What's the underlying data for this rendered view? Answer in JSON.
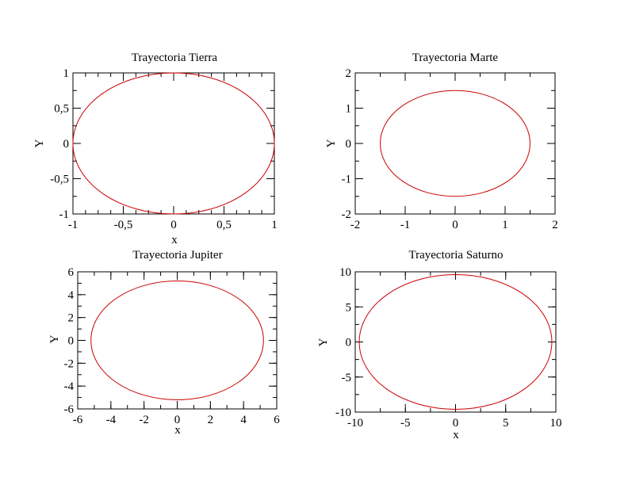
{
  "chart_data": [
    {
      "type": "line",
      "title": "Trayectoria Tierra",
      "xlabel": "x",
      "ylabel": "Y",
      "xlim": [
        -1,
        1
      ],
      "ylim": [
        -1,
        1
      ],
      "xticks": [
        -1,
        -0.5,
        0,
        0.5,
        1
      ],
      "yticks": [
        -1,
        -0.5,
        0,
        0.5,
        1
      ],
      "xtick_labels": [
        "-1",
        "-0,5",
        "0",
        "0,5",
        "1"
      ],
      "ytick_labels": [
        "-1",
        "-0,5",
        "0",
        "0,5",
        "1"
      ],
      "x_minor_step": 0.125,
      "y_minor_step": 0.25,
      "series": [
        {
          "color": "#cc0000",
          "shape": "ellipse",
          "center": [
            0,
            0
          ],
          "semi_axis_x": 1.0,
          "semi_axis_y": 1.0
        }
      ]
    },
    {
      "type": "line",
      "title": "Trayectoria Marte",
      "xlabel": "",
      "ylabel": "Y",
      "xlim": [
        -2,
        2
      ],
      "ylim": [
        -2,
        2
      ],
      "xticks": [
        -2,
        -1,
        0,
        1,
        2
      ],
      "yticks": [
        -2,
        -1,
        0,
        1,
        2
      ],
      "xtick_labels": [
        "-2",
        "-1",
        "0",
        "1",
        "2"
      ],
      "ytick_labels": [
        "-2",
        "-1",
        "0",
        "1",
        "2"
      ],
      "x_minor_step": 0.5,
      "y_minor_step": 0.5,
      "series": [
        {
          "color": "#cc0000",
          "shape": "ellipse",
          "center": [
            0,
            0
          ],
          "semi_axis_x": 1.5,
          "semi_axis_y": 1.5
        }
      ]
    },
    {
      "type": "line",
      "title": "Trayectoria Jupiter",
      "xlabel": "x",
      "ylabel": "Y",
      "xlim": [
        -6,
        6
      ],
      "ylim": [
        -6,
        6
      ],
      "xticks": [
        -6,
        -4,
        -2,
        0,
        2,
        4,
        6
      ],
      "yticks": [
        -6,
        -4,
        -2,
        0,
        2,
        4,
        6
      ],
      "xtick_labels": [
        "-6",
        "-4",
        "-2",
        "0",
        "2",
        "4",
        "6"
      ],
      "ytick_labels": [
        "-6",
        "-4",
        "-2",
        "0",
        "2",
        "4",
        "6"
      ],
      "x_minor_step": 1,
      "y_minor_step": 1,
      "series": [
        {
          "color": "#cc0000",
          "shape": "ellipse",
          "center": [
            0,
            0
          ],
          "semi_axis_x": 5.2,
          "semi_axis_y": 5.2
        }
      ]
    },
    {
      "type": "line",
      "title": "Trayectoria Saturno",
      "xlabel": "x",
      "ylabel": "Y",
      "xlim": [
        -10,
        10
      ],
      "ylim": [
        -10,
        10
      ],
      "xticks": [
        -10,
        -5,
        0,
        5,
        10
      ],
      "yticks": [
        -10,
        -5,
        0,
        5,
        10
      ],
      "xtick_labels": [
        "-10",
        "-5",
        "0",
        "5",
        "10"
      ],
      "ytick_labels": [
        "-10",
        "-5",
        "0",
        "5",
        "10"
      ],
      "x_minor_step": 2.5,
      "y_minor_step": 2.5,
      "series": [
        {
          "color": "#cc0000",
          "shape": "ellipse",
          "center": [
            0,
            0
          ],
          "semi_axis_x": 9.6,
          "semi_axis_y": 9.6
        }
      ]
    }
  ]
}
